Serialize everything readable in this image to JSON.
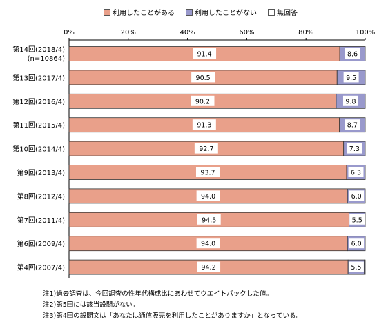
{
  "chart_data": {
    "type": "bar",
    "stacked": true,
    "orientation": "horizontal",
    "categories": [
      "第14回(2018/4)(n=10864)",
      "第13回(2017/4)",
      "第12回(2016/4)",
      "第11回(2015/4)",
      "第10回(2014/4)",
      "第9回(2013/4)",
      "第8回(2012/4)",
      "第7回(2011/4)",
      "第6回(2009/4)",
      "第4回(2007/4)"
    ],
    "category_lines": [
      [
        "第14回(2018/4)",
        "(n=10864)"
      ],
      [
        "第13回(2017/4)"
      ],
      [
        "第12回(2016/4)"
      ],
      [
        "第11回(2015/4)"
      ],
      [
        "第10回(2014/4)"
      ],
      [
        "第9回(2013/4)"
      ],
      [
        "第8回(2012/4)"
      ],
      [
        "第7回(2011/4)"
      ],
      [
        "第6回(2009/4)"
      ],
      [
        "第4回(2007/4)"
      ]
    ],
    "series": [
      {
        "name": "利用したことがある",
        "color": "#e9a08a",
        "values": [
          91.4,
          90.5,
          90.2,
          91.3,
          92.7,
          93.7,
          94.0,
          94.5,
          94.0,
          94.2
        ]
      },
      {
        "name": "利用したことがない",
        "color": "#9999cc",
        "values": [
          8.6,
          9.5,
          9.8,
          8.7,
          7.3,
          6.3,
          6.0,
          5.5,
          6.0,
          5.5
        ]
      },
      {
        "name": "無回答",
        "color": "#ffffff",
        "values": [
          0.0,
          0.0,
          0.0,
          0.0,
          0.0,
          0.0,
          0.0,
          0.0,
          0.0,
          0.3
        ]
      }
    ],
    "data_labels": [
      [
        "91.4",
        "8.6"
      ],
      [
        "90.5",
        "9.5"
      ],
      [
        "90.2",
        "9.8"
      ],
      [
        "91.3",
        "8.7"
      ],
      [
        "92.7",
        "7.3"
      ],
      [
        "93.7",
        "6.3"
      ],
      [
        "94.0",
        "6.0"
      ],
      [
        "94.5",
        "5.5"
      ],
      [
        "94.0",
        "6.0"
      ],
      [
        "94.2",
        "5.5"
      ]
    ],
    "x_ticks": [
      "0%",
      "20%",
      "40%",
      "60%",
      "80%",
      "100%"
    ],
    "xlim": [
      0,
      100
    ],
    "grid": false,
    "legend_position": "top"
  },
  "legend": [
    {
      "label": "利用したことがある",
      "color": "#e9a08a"
    },
    {
      "label": "利用したことがない",
      "color": "#9999cc"
    },
    {
      "label": "無回答",
      "color": "#ffffff"
    }
  ],
  "notes": [
    "注1)過去調査は、今回調査の性年代構成比にあわせてウエイトバックした値。",
    "注2)第5回には該当設問がない。",
    "注3)第4回の設問文は「あなたは通信販売を利用したことがありますか」となっている。"
  ]
}
